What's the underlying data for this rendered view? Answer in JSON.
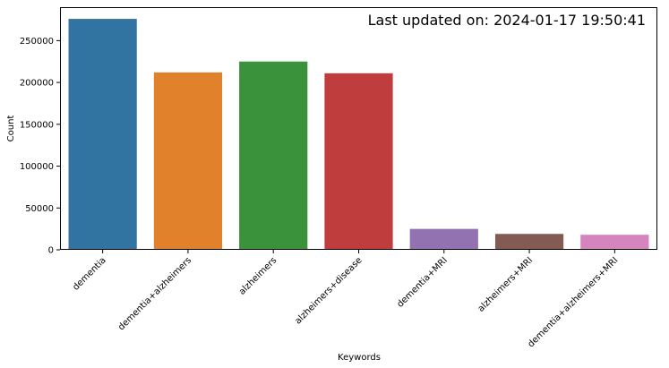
{
  "chart_data": {
    "type": "bar",
    "categories": [
      "dementia",
      "dementia+alzheimers",
      "alzheimers",
      "alzheimers+disease",
      "dementia+MRI",
      "alzheimers+MRI",
      "dementia+alzheimers+MRI"
    ],
    "values": [
      276000,
      212000,
      225000,
      211000,
      25000,
      19000,
      18000
    ],
    "colors": [
      "#3274a1",
      "#e1812c",
      "#3a923a",
      "#c03d3e",
      "#9372b2",
      "#845b53",
      "#d684bd"
    ],
    "xlabel": "Keywords",
    "ylabel": "Count",
    "annotation": "Last updated on: 2024-01-17 19:50:41",
    "ylim": [
      0,
      290000
    ],
    "yticks": [
      0,
      50000,
      100000,
      150000,
      200000,
      250000
    ],
    "grid": false,
    "legend": "none"
  }
}
